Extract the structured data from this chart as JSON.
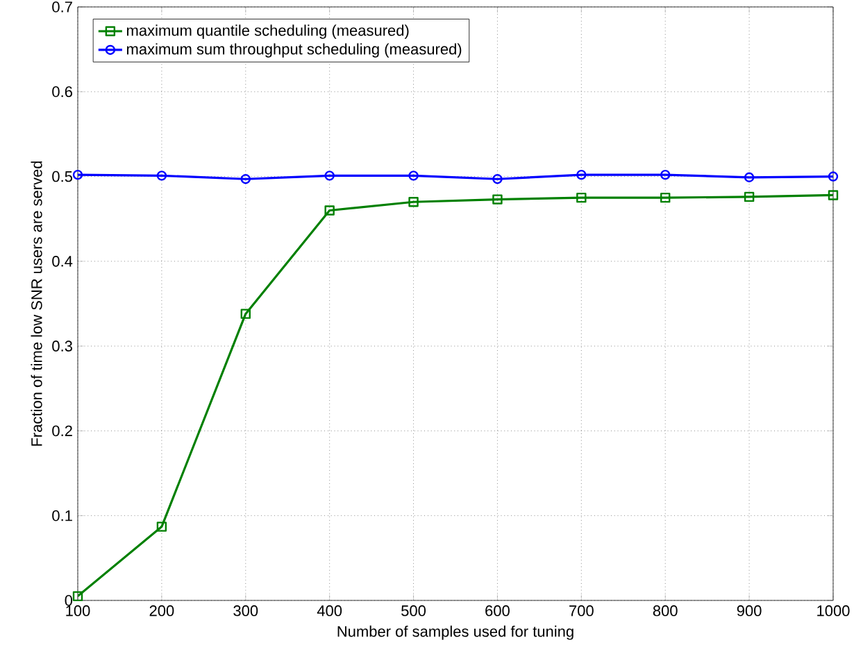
{
  "chart_data": {
    "type": "line",
    "xlabel": "Number of samples used for tuning",
    "ylabel": "Fraction of time low SNR users are served",
    "x": [
      100,
      200,
      300,
      400,
      500,
      600,
      700,
      800,
      900,
      1000
    ],
    "series": [
      {
        "name": "maximum quantile scheduling (measured)",
        "color": "#008000",
        "marker": "square",
        "values": [
          0.005,
          0.087,
          0.338,
          0.46,
          0.47,
          0.473,
          0.475,
          0.475,
          0.476,
          0.478
        ]
      },
      {
        "name": "maximum sum throughput scheduling (measured)",
        "color": "#0000ff",
        "marker": "circle",
        "values": [
          0.502,
          0.501,
          0.497,
          0.501,
          0.501,
          0.497,
          0.502,
          0.502,
          0.499,
          0.5
        ]
      }
    ],
    "xlim": [
      100,
      1000
    ],
    "ylim": [
      0,
      0.7
    ],
    "xticks": [
      100,
      200,
      300,
      400,
      500,
      600,
      700,
      800,
      900,
      1000
    ],
    "yticks": [
      0,
      0.1,
      0.2,
      0.3,
      0.4,
      0.5,
      0.6,
      0.7
    ],
    "grid": true,
    "legend": "top left",
    "line_style": "solid"
  }
}
